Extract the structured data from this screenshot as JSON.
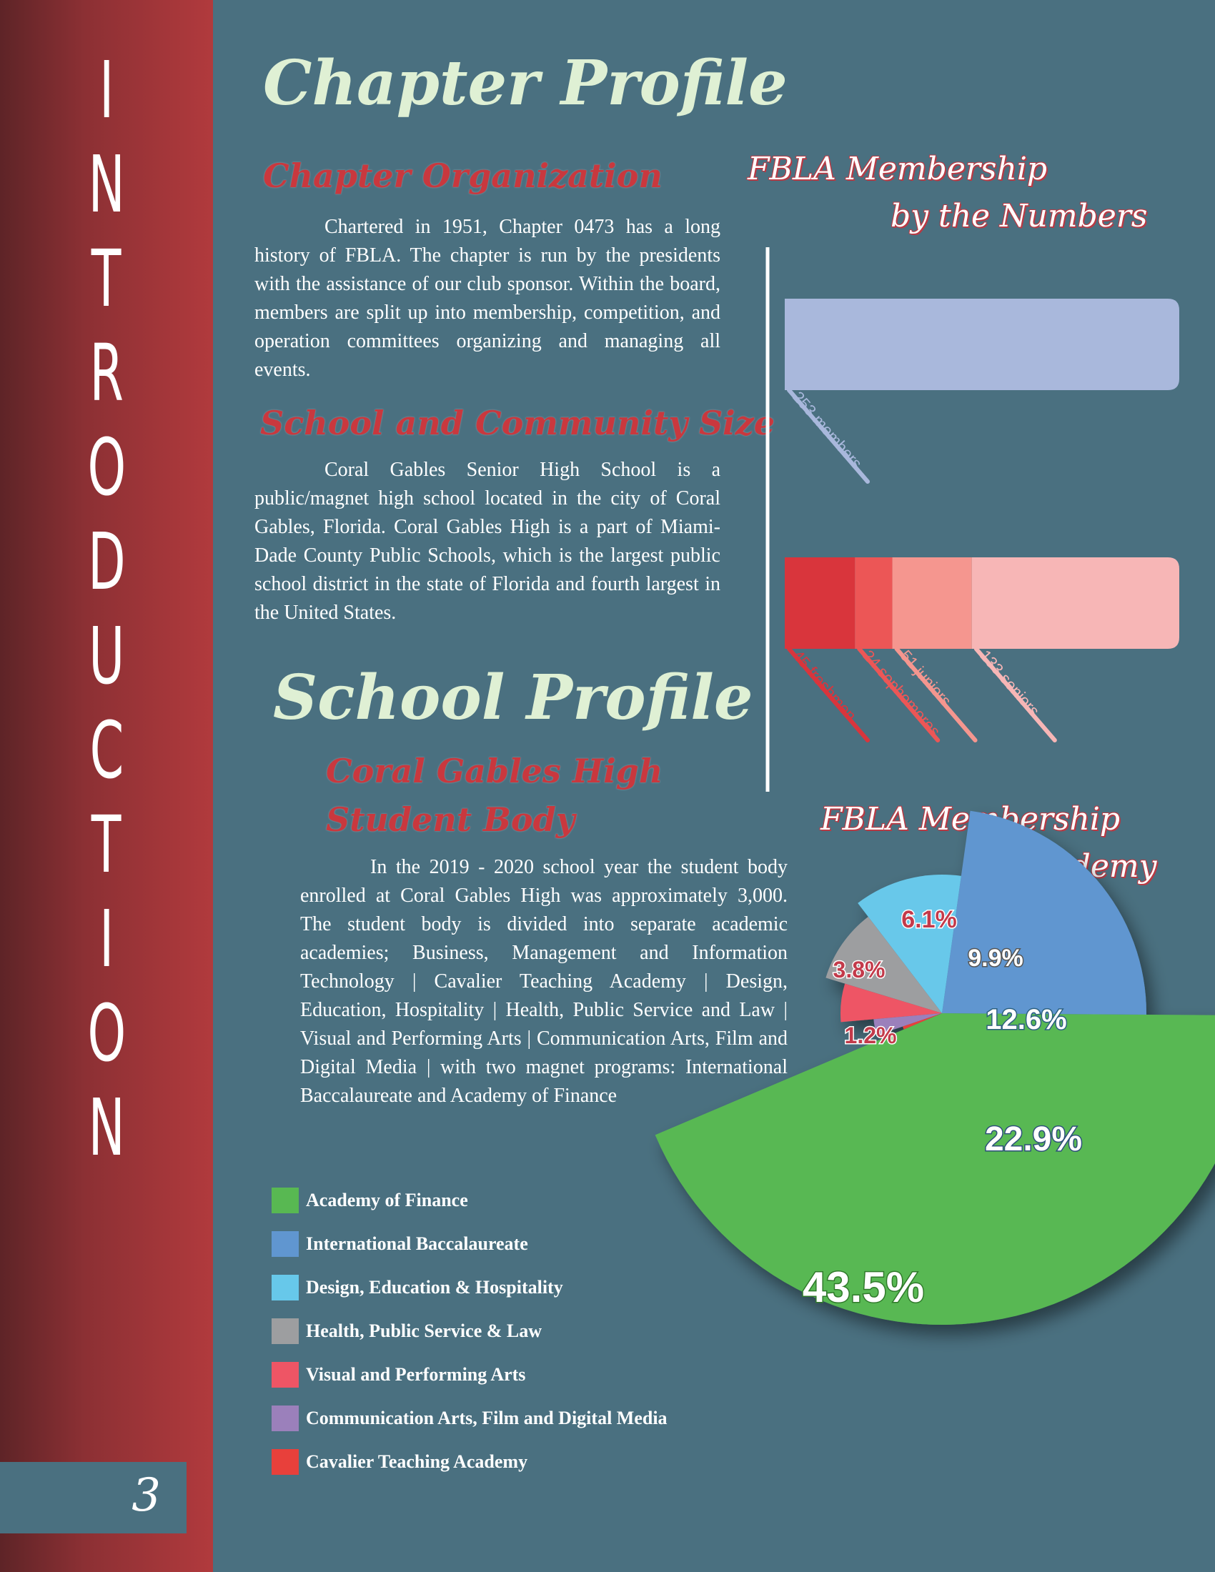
{
  "sidebar": {
    "letters": [
      "I",
      "N",
      "T",
      "R",
      "O",
      "D",
      "U",
      "C",
      "T",
      "I",
      "O",
      "N"
    ],
    "page_number": "3"
  },
  "chapter_profile": {
    "title": "Chapter Profile",
    "organization_heading": "Chapter Organization",
    "organization_text": "Chartered in 1951, Chapter 0473 has a long history of FBLA. The chapter is run by the presidents with the assistance of our club sponsor. Within the board, members are split up into membership, competition, and operation committees organizing and managing all events.",
    "size_heading": "School and Community Size",
    "size_text": "Coral Gables Senior High School is a public/magnet high school located in the city of Coral Gables, Florida. Coral Gables High is a part of Miami-Dade County Public Schools, which is the largest public school district in the state of Florida and fourth largest in the United States."
  },
  "school_profile": {
    "title": "School Profile",
    "heading_line1": "Coral Gables High",
    "heading_line2": "Student Body",
    "text": "In the 2019 - 2020 school year the student body enrolled at Coral Gables High was approximately 3,000. The student body is divided into separate academic academies; Business, Management and Information Technology | Cavalier Teaching Academy | Design, Education, Hospitality | Health, Public Service and Law | Visual and Performing Arts | Communication Arts, Film and Digital Media | with two magnet programs: International Baccalaureate and Academy of Finance"
  },
  "membership_chart": {
    "title_line1": "FBLA Membership",
    "title_line2": "by the Numbers"
  },
  "academy_chart": {
    "title_line1": "FBLA Membership",
    "title_line2": "by Academy"
  },
  "chart_data": [
    {
      "type": "bar",
      "orientation": "horizontal",
      "stacked": true,
      "categories": [
        "",
        ""
      ],
      "series": [
        {
          "name": "members",
          "values": [
            253,
            0
          ],
          "color": "#a9b8dc",
          "label": "253 members"
        },
        {
          "name": "freshmen",
          "values": [
            0,
            45
          ],
          "color": "#d9353c",
          "label": "45 freshmen"
        },
        {
          "name": "sophomores",
          "values": [
            0,
            24
          ],
          "color": "#ec5656",
          "label": "24 sophomores"
        },
        {
          "name": "juniors",
          "values": [
            0,
            51
          ],
          "color": "#f5968f",
          "label": "51 juniors"
        },
        {
          "name": "seniors",
          "values": [
            0,
            133
          ],
          "color": "#f7b6b6",
          "label": "133 seniors"
        }
      ],
      "xlim": [
        0,
        253
      ],
      "grid": false
    },
    {
      "type": "pie",
      "style": "variable-radius",
      "slices": [
        {
          "label": "Academy of Finance",
          "value": 43.5,
          "display": "43.5%",
          "color": "#58b852"
        },
        {
          "label": "International Baccalaureate",
          "value": 22.9,
          "display": "22.9%",
          "color": "#6096d0"
        },
        {
          "label": "Design, Education & Hospitality",
          "value": 12.6,
          "display": "12.6%",
          "color": "#67c8ea"
        },
        {
          "label": "Health, Public Service & Law",
          "value": 9.9,
          "display": "9.9%",
          "color": "#9d9ea0"
        },
        {
          "label": "Visual and Performing Arts",
          "value": 6.1,
          "display": "6.1%",
          "color": "#ee5565"
        },
        {
          "label": "Communication Arts, Film and Digital Media",
          "value": 3.8,
          "display": "3.8%",
          "color": "#9b80bb"
        },
        {
          "label": "Cavalier Teaching Academy",
          "value": 1.2,
          "display": "1.2%",
          "color": "#e8403b"
        }
      ],
      "legend": "bottom-left"
    }
  ]
}
